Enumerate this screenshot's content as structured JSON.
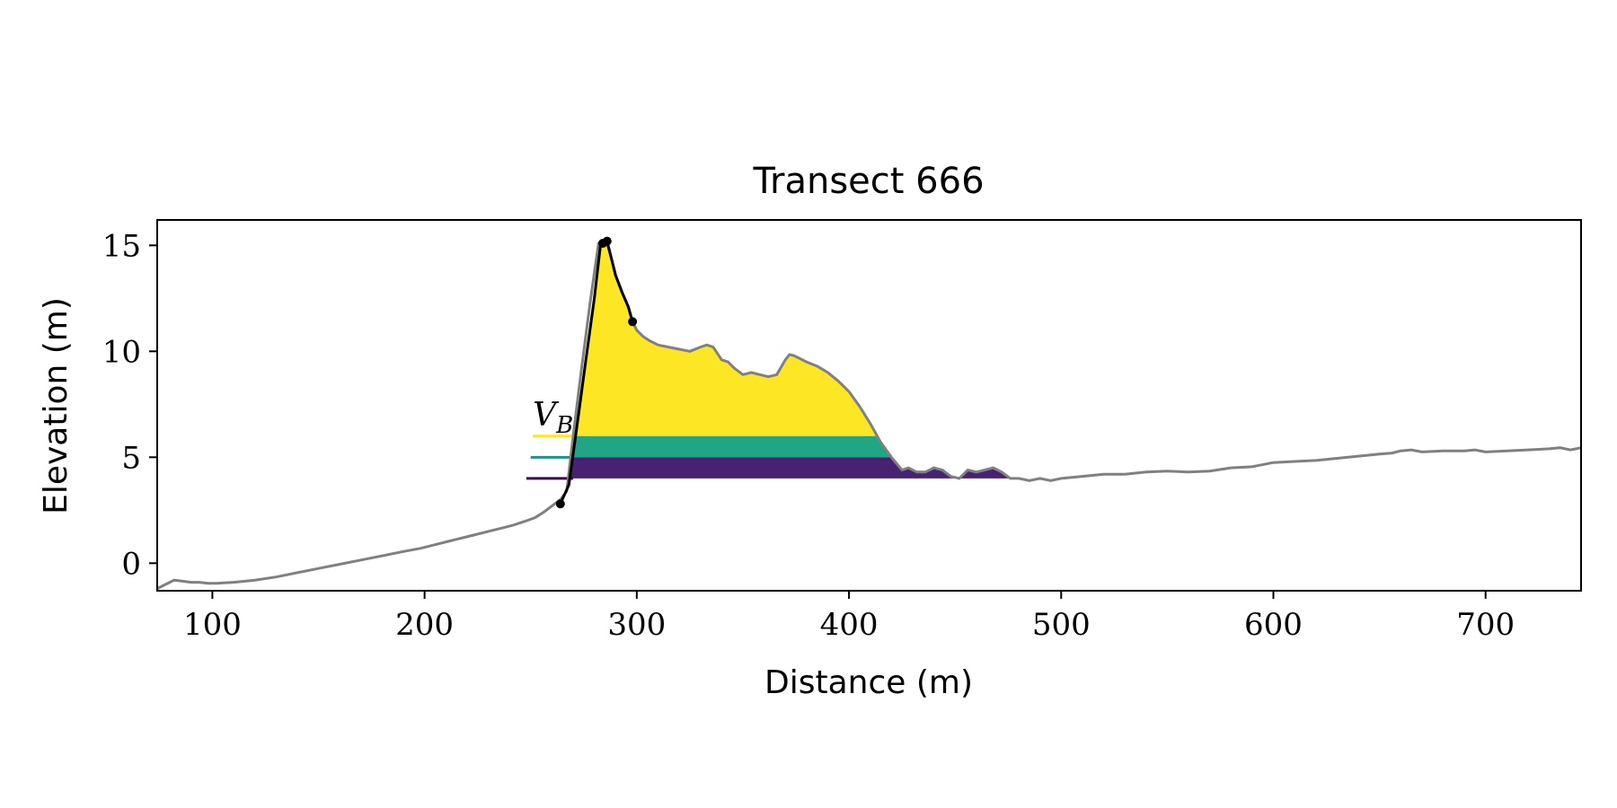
{
  "chart_data": {
    "type": "area",
    "title": "Transect 666",
    "xlabel": "Distance (m)",
    "ylabel": "Elevation (m)",
    "xlim": [
      74,
      745
    ],
    "ylim": [
      -1.3,
      16.2
    ],
    "xticks": [
      100,
      200,
      300,
      400,
      500,
      600,
      700
    ],
    "xtick_labels": [
      "100",
      "200",
      "300",
      "400",
      "500",
      "600",
      "700"
    ],
    "yticks": [
      0,
      5,
      10,
      15
    ],
    "ytick_labels": [
      "0",
      "5",
      "10",
      "15"
    ],
    "grid": false,
    "annotation": {
      "text": "V",
      "subscript": "B",
      "x": 251,
      "y": 6.5
    },
    "colors": {
      "profile": "#808080",
      "dune_line": "#000000",
      "upper_fill": "#fde725",
      "middle_fill": "#21a685",
      "lower_fill": "#482173"
    },
    "profile": {
      "x": [
        74,
        78,
        82,
        86,
        90,
        94,
        98,
        102,
        110,
        120,
        130,
        140,
        150,
        160,
        170,
        180,
        190,
        198,
        206,
        212,
        218,
        224,
        230,
        236,
        242,
        248,
        252,
        256,
        260,
        264,
        267,
        270,
        274,
        278,
        282,
        284,
        286,
        288,
        290,
        293,
        296,
        298,
        300,
        303,
        306,
        310,
        315,
        320,
        325,
        330,
        333,
        336,
        338,
        340,
        343,
        346,
        350,
        354,
        358,
        362,
        366,
        370,
        372,
        374,
        376,
        380,
        385,
        390,
        395,
        400,
        405,
        410,
        415,
        420,
        425,
        428,
        432,
        436,
        440,
        444,
        448,
        452,
        456,
        460,
        464,
        468,
        472,
        476,
        480,
        485,
        490,
        495,
        500,
        510,
        520,
        530,
        540,
        550,
        560,
        570,
        580,
        590,
        600,
        610,
        620,
        630,
        640,
        650,
        656,
        660,
        665,
        670,
        680,
        690,
        695,
        700,
        710,
        720,
        730,
        735,
        740,
        745
      ],
      "y": [
        -1.2,
        -1.0,
        -0.8,
        -0.85,
        -0.9,
        -0.9,
        -0.95,
        -0.95,
        -0.9,
        -0.8,
        -0.65,
        -0.45,
        -0.25,
        -0.05,
        0.15,
        0.35,
        0.55,
        0.7,
        0.9,
        1.05,
        1.2,
        1.35,
        1.5,
        1.65,
        1.8,
        2.0,
        2.15,
        2.4,
        2.7,
        3.0,
        3.4,
        6.0,
        9.2,
        12.3,
        15.1,
        15.2,
        15.1,
        14.4,
        13.6,
        12.8,
        12.1,
        11.4,
        11.0,
        10.7,
        10.5,
        10.3,
        10.2,
        10.1,
        10.0,
        10.2,
        10.3,
        10.2,
        9.9,
        9.6,
        9.5,
        9.2,
        8.9,
        9.0,
        8.9,
        8.8,
        8.9,
        9.6,
        9.85,
        9.8,
        9.7,
        9.5,
        9.3,
        9.0,
        8.6,
        8.1,
        7.4,
        6.6,
        5.7,
        5.0,
        4.4,
        4.5,
        4.3,
        4.3,
        4.5,
        4.4,
        4.1,
        4.0,
        4.4,
        4.3,
        4.4,
        4.5,
        4.3,
        4.0,
        4.0,
        3.9,
        4.0,
        3.9,
        4.0,
        4.1,
        4.2,
        4.2,
        4.3,
        4.35,
        4.3,
        4.35,
        4.5,
        4.55,
        4.75,
        4.8,
        4.85,
        4.95,
        5.05,
        5.15,
        5.2,
        5.3,
        5.35,
        5.25,
        5.3,
        5.3,
        5.35,
        5.25,
        5.3,
        5.35,
        5.4,
        5.45,
        5.35,
        5.45
      ]
    },
    "dune_line": {
      "x": [
        264,
        268,
        272,
        276,
        280,
        283,
        286,
        288,
        290,
        293,
        296,
        298
      ],
      "y": [
        2.8,
        3.7,
        6.6,
        9.6,
        12.5,
        15.1,
        15.2,
        14.4,
        13.6,
        12.8,
        12.1,
        11.4
      ]
    },
    "markers": {
      "x": [
        264,
        284,
        286,
        298
      ],
      "y": [
        2.8,
        15.1,
        15.2,
        11.4
      ]
    },
    "levels": [
      {
        "y": 6.0,
        "x_start": 251,
        "x_end": 270,
        "color": "#fde725"
      },
      {
        "y": 5.0,
        "x_start": 250,
        "x_end": 270,
        "color": "#21918c"
      },
      {
        "y": 4.0,
        "x_start": 248,
        "x_end": 270,
        "color": "#440154"
      }
    ],
    "bands": [
      {
        "name": "upper",
        "y_bottom": 6.0,
        "y_top": 16,
        "x_min": 270,
        "x_max": 420,
        "color": "#fde725"
      },
      {
        "name": "middle",
        "y_bottom": 5.0,
        "y_top": 6.0,
        "x_min": 270,
        "x_max": 430,
        "color": "#21a685"
      },
      {
        "name": "lower",
        "y_bottom": 4.0,
        "y_top": 5.0,
        "x_min": 268,
        "x_max": 482,
        "color": "#482173"
      }
    ]
  }
}
